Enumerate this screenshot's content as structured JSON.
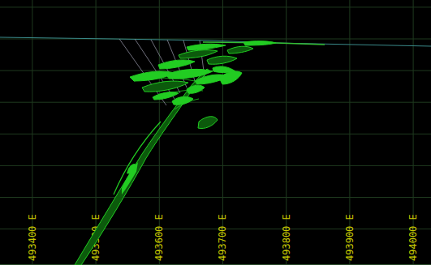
{
  "chart_data": {
    "type": "section",
    "xlim": [
      493349,
      494028
    ],
    "xticks": [
      {
        "value": 493400,
        "label": "493400 E"
      },
      {
        "value": 493500,
        "label": "493500 E"
      },
      {
        "value": 493600,
        "label": "493600 E"
      },
      {
        "value": 493700,
        "label": "493700 E"
      },
      {
        "value": 493800,
        "label": "493800 E"
      },
      {
        "value": 493900,
        "label": "493900 E"
      },
      {
        "value": 494000,
        "label": "494000 E"
      }
    ],
    "grid": true,
    "tick_labels": "x",
    "color": "#22cc22"
  }
}
